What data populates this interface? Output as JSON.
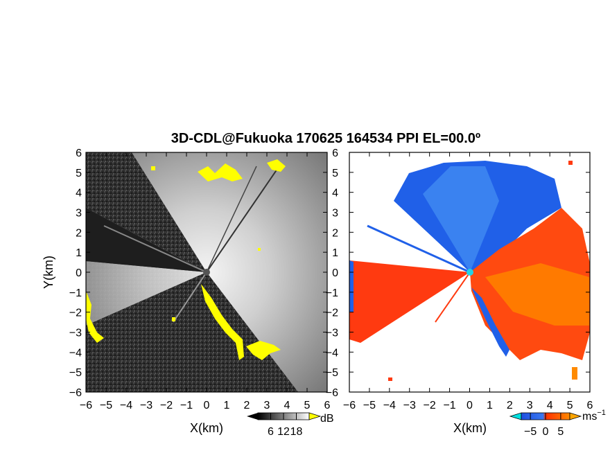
{
  "title": "3D-CDL@Fukuoka 170625 164534 PPI EL=00.0º",
  "chart_data": [
    {
      "type": "heatmap",
      "panel": "left",
      "quantity": "SNR",
      "xlabel": "X(km)",
      "ylabel": "Y(km)",
      "xlim": [
        -6,
        6
      ],
      "ylim": [
        -6,
        6
      ],
      "xticks": [
        "−6",
        "−5",
        "−4",
        "−3",
        "−2",
        "−1",
        "0",
        "1",
        "2",
        "3",
        "4",
        "5",
        "6"
      ],
      "yticks": [
        "−6",
        "−5",
        "−4",
        "−3",
        "−2",
        "−1",
        "0",
        "1",
        "2",
        "3",
        "4",
        "5",
        "6"
      ],
      "colorbar": {
        "unit": "dB",
        "ticks": [
          "6",
          "12",
          "18"
        ],
        "tick_values": [
          6,
          12,
          18
        ],
        "colors": [
          "#000000",
          "#ffffff"
        ],
        "extend": "both",
        "extend_colors": [
          "#000000",
          "#ffff00"
        ]
      },
      "highlight_color": "#ffff00",
      "radar_origin": [
        0,
        0
      ],
      "blocked_sectors_deg": [
        [
          155,
          176
        ],
        [
          212,
          300
        ]
      ]
    },
    {
      "type": "heatmap",
      "panel": "right",
      "quantity": "Doppler velocity",
      "xlabel": "X(km)",
      "ylabel": "",
      "xlim": [
        -6,
        6
      ],
      "ylim": [
        -6,
        6
      ],
      "xticks": [
        "−6",
        "−5",
        "−4",
        "−3",
        "−2",
        "−1",
        "0",
        "1",
        "2",
        "3",
        "4",
        "5",
        "6"
      ],
      "yticks": [
        "−6",
        "−5",
        "−4",
        "−3",
        "−2",
        "−1",
        "0",
        "1",
        "2",
        "3",
        "4",
        "5",
        "6"
      ],
      "colorbar": {
        "unit": "ms",
        "unit_exponent": "−1",
        "ticks": [
          "−5",
          "0",
          "5"
        ],
        "tick_values": [
          -5,
          0,
          5
        ],
        "colors": [
          "#1e4fe0",
          "#3a78f0",
          "#ff3000",
          "#ff8a00"
        ],
        "extend": "both",
        "extend_colors": [
          "#00e0e0",
          "#ffa500"
        ]
      },
      "radar_origin": [
        0,
        0
      ],
      "origin_marker_color": "#22d3e6"
    }
  ]
}
